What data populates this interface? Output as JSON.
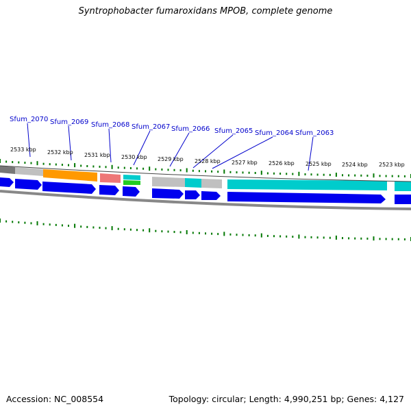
{
  "title": "Syntrophobacter fumaroxidans MPOB, complete genome",
  "footer": {
    "accession": "Accession: NC_008554",
    "summary": "Topology: circular; Length: 4,990,251 bp; Genes: 4,127"
  },
  "colors": {
    "cds_blue": "#0000ee",
    "pathway_orange": "#ff9900",
    "pathway_red": "#ee7777",
    "pathway_cyan": "#00cccc",
    "pathway_green": "#22cc22",
    "pathway_gray": "#c0c0c0",
    "pathway_darkgray": "#777777",
    "tick_green": "#007700",
    "label_blue": "#0000cc",
    "leader_blue": "#0000cc",
    "backbone_gray": "#888888"
  },
  "gene_labels": [
    "Sfum_2070",
    "Sfum_2069",
    "Sfum_2068",
    "Sfum_2067",
    "Sfum_2066",
    "Sfum_2065",
    "Sfum_2064",
    "Sfum_2063"
  ],
  "kbp_labels": [
    "2533 kbp",
    "2532 kbp",
    "2531 kbp",
    "2530 kbp",
    "2529 kbp",
    "2528 kbp",
    "2527 kbp",
    "2526 kbp",
    "2525 kbp",
    "2524 kbp",
    "2523 kbp"
  ],
  "pathway_segment_colors": [
    "darkgray",
    "gray",
    "orange",
    "red",
    "cyan",
    "gray",
    "cyan",
    "gray",
    "cyan",
    "cyan"
  ]
}
